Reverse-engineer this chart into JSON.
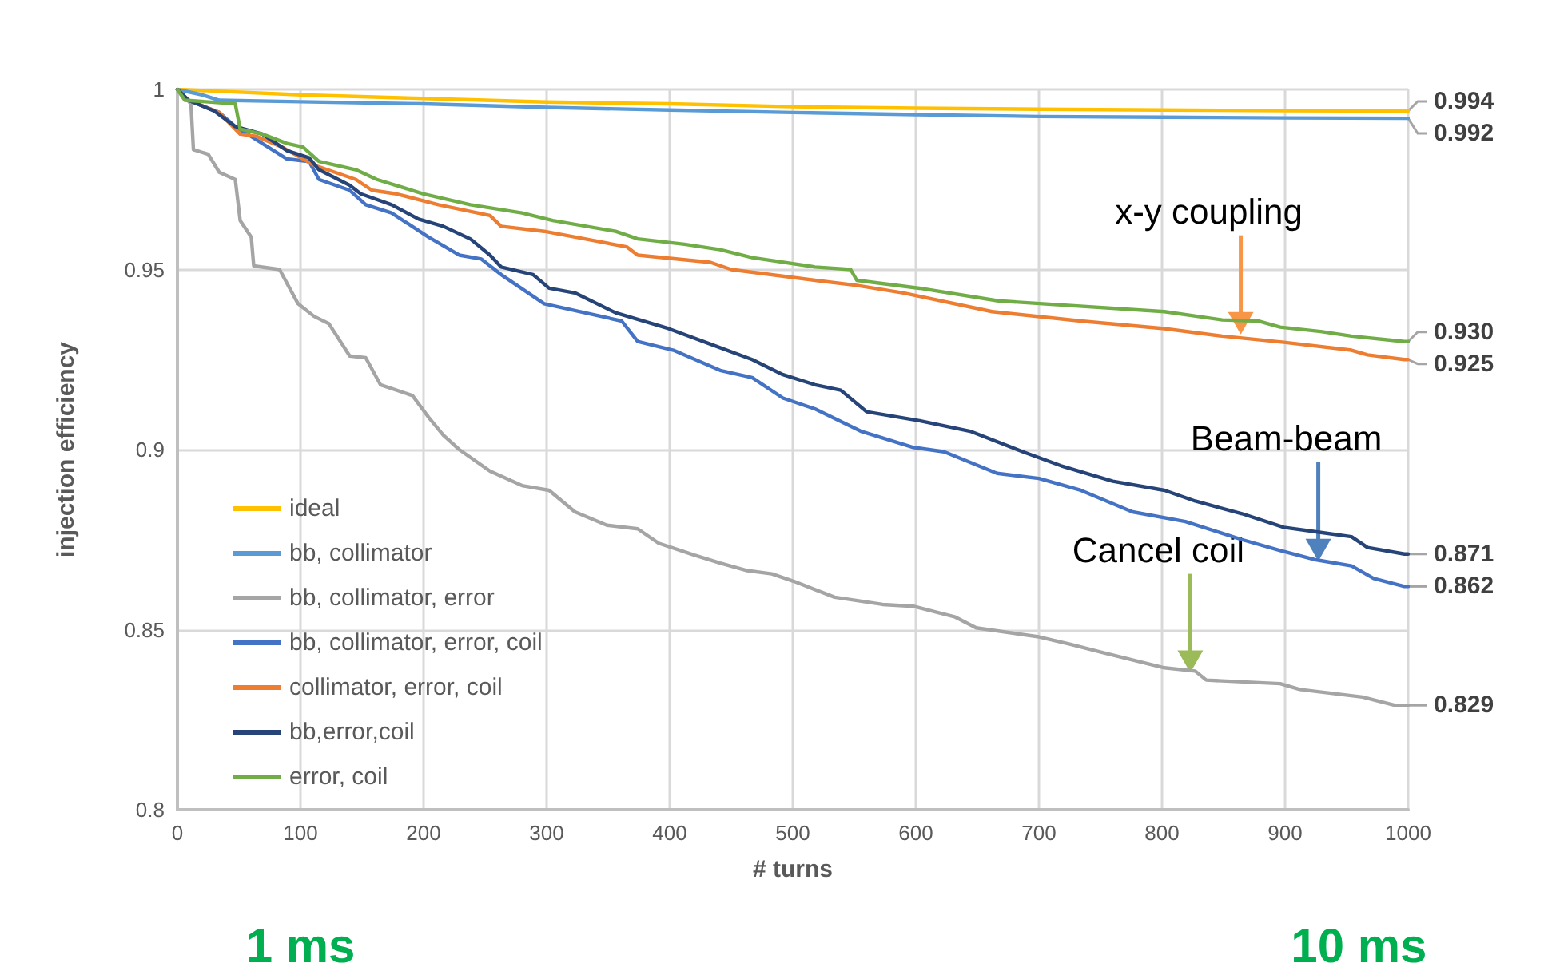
{
  "chart_data": {
    "type": "line",
    "xlabel": "# turns",
    "ylabel": "injection efficiency",
    "xlim": [
      0,
      1000
    ],
    "xticks": [
      0,
      100,
      200,
      300,
      400,
      500,
      600,
      700,
      800,
      900,
      1000
    ],
    "ylim": [
      0.8,
      1
    ],
    "yticks": [
      0.8,
      0.85,
      0.9,
      0.95,
      1
    ],
    "grid": true,
    "legend": "bottom left",
    "marker": "none",
    "line_style": "solid",
    "series": [
      {
        "name": "ideal",
        "color": "#ffc000",
        "x": [
          0,
          100,
          200,
          300,
          400,
          500,
          600,
          700,
          800,
          900,
          1000
        ],
        "values": [
          1,
          0.9985,
          0.9975,
          0.9965,
          0.996,
          0.9952,
          0.9948,
          0.9945,
          0.9943,
          0.9941,
          0.994
        ]
      },
      {
        "name": "bb, collimator",
        "color": "#5b9bd5",
        "x": [
          0,
          20,
          34,
          100,
          200,
          300,
          400,
          500,
          600,
          700,
          800,
          900,
          1000
        ],
        "values": [
          1,
          0.9985,
          0.997,
          0.9966,
          0.996,
          0.995,
          0.9943,
          0.9936,
          0.993,
          0.9925,
          0.9923,
          0.9921,
          0.992
        ]
      },
      {
        "name": "bb, collimator, error",
        "color": "#a5a5a5",
        "x": [
          0,
          11,
          13,
          25,
          34,
          47,
          51,
          60,
          62,
          83,
          98,
          111,
          123,
          140,
          153,
          165,
          191,
          204,
          216,
          229,
          254,
          280,
          302,
          323,
          349,
          374,
          391,
          420,
          441,
          463,
          483,
          501,
          534,
          573,
          598,
          632,
          649,
          700,
          725,
          751,
          802,
          827,
          836,
          896,
          912,
          963,
          989,
          1000
        ],
        "values": [
          1,
          0.996,
          0.9833,
          0.982,
          0.977,
          0.975,
          0.9636,
          0.959,
          0.951,
          0.95,
          0.9405,
          0.937,
          0.935,
          0.926,
          0.9255,
          0.918,
          0.915,
          0.909,
          0.904,
          0.9,
          0.894,
          0.89,
          0.8887,
          0.8827,
          0.879,
          0.878,
          0.874,
          0.8707,
          0.8685,
          0.8664,
          0.8655,
          0.8634,
          0.859,
          0.857,
          0.8565,
          0.8535,
          0.8505,
          0.848,
          0.846,
          0.8437,
          0.8394,
          0.8385,
          0.836,
          0.835,
          0.8334,
          0.8313,
          0.829,
          0.829
        ]
      },
      {
        "name": "bb, collimator, error, coil",
        "color": "#4472c4",
        "x": [
          0,
          9,
          34,
          47,
          69,
          89,
          107,
          115,
          140,
          153,
          174,
          204,
          229,
          247,
          263,
          298,
          331,
          361,
          374,
          403,
          441,
          467,
          492,
          518,
          556,
          598,
          623,
          666,
          700,
          734,
          776,
          819,
          865,
          896,
          925,
          954,
          972,
          997,
          1000
        ],
        "values": [
          1,
          0.997,
          0.9936,
          0.9897,
          0.985,
          0.9807,
          0.98,
          0.975,
          0.972,
          0.968,
          0.9657,
          0.959,
          0.954,
          0.9529,
          0.9486,
          0.9405,
          0.938,
          0.9357,
          0.93,
          0.9276,
          0.922,
          0.92,
          0.9143,
          0.9113,
          0.905,
          0.9006,
          0.8994,
          0.8934,
          0.892,
          0.8887,
          0.8827,
          0.88,
          0.875,
          0.872,
          0.8694,
          0.8677,
          0.8642,
          0.862,
          0.862
        ]
      },
      {
        "name": "collimator, error, coil",
        "color": "#ed7d31",
        "x": [
          0,
          9,
          34,
          47,
          51,
          64,
          85,
          111,
          145,
          158,
          178,
          212,
          254,
          263,
          298,
          331,
          365,
          374,
          433,
          450,
          518,
          552,
          590,
          662,
          734,
          802,
          849,
          899,
          954,
          967,
          997,
          1000
        ],
        "values": [
          1,
          0.997,
          0.9936,
          0.989,
          0.9876,
          0.987,
          0.984,
          0.979,
          0.975,
          0.972,
          0.971,
          0.968,
          0.965,
          0.962,
          0.9606,
          0.9585,
          0.9563,
          0.954,
          0.952,
          0.95,
          0.947,
          0.9456,
          0.9435,
          0.9383,
          0.9357,
          0.9336,
          0.9315,
          0.9298,
          0.9276,
          0.9263,
          0.925,
          0.925
        ]
      },
      {
        "name": "bb,error,coil",
        "color": "#264478",
        "x": [
          0,
          9,
          30,
          47,
          69,
          89,
          107,
          115,
          140,
          149,
          174,
          196,
          216,
          238,
          254,
          263,
          289,
          302,
          323,
          356,
          399,
          433,
          467,
          492,
          518,
          539,
          560,
          603,
          645,
          687,
          718,
          760,
          802,
          827,
          865,
          899,
          929,
          954,
          967,
          997,
          1000
        ],
        "values": [
          1,
          0.997,
          0.994,
          0.9897,
          0.9876,
          0.983,
          0.981,
          0.9777,
          0.9734,
          0.971,
          0.968,
          0.964,
          0.962,
          0.9585,
          0.954,
          0.9507,
          0.9486,
          0.9448,
          0.9435,
          0.938,
          0.9336,
          0.9293,
          0.925,
          0.9208,
          0.918,
          0.9165,
          0.9105,
          0.908,
          0.905,
          0.8994,
          0.8955,
          0.8912,
          0.8887,
          0.8857,
          0.8822,
          0.8784,
          0.877,
          0.8758,
          0.8728,
          0.871,
          0.871
        ]
      },
      {
        "name": "error, coil",
        "color": "#70ad47",
        "x": [
          0,
          6,
          47,
          51,
          69,
          89,
          102,
          115,
          145,
          162,
          200,
          238,
          280,
          305,
          356,
          374,
          412,
          441,
          467,
          518,
          547,
          552,
          603,
          667,
          802,
          849,
          878,
          896,
          929,
          954,
          997,
          1000
        ],
        "values": [
          1,
          0.997,
          0.996,
          0.989,
          0.9876,
          0.985,
          0.984,
          0.98,
          0.9777,
          0.975,
          0.971,
          0.968,
          0.9657,
          0.9636,
          0.9606,
          0.9585,
          0.957,
          0.9555,
          0.9533,
          0.9507,
          0.95,
          0.947,
          0.9448,
          0.9413,
          0.9383,
          0.936,
          0.9357,
          0.934,
          0.9328,
          0.9315,
          0.93,
          0.93
        ]
      }
    ],
    "annotations": [
      {
        "text": "0.994",
        "x": 1000,
        "y": 0.994
      },
      {
        "text": "0.992",
        "x": 1000,
        "y": 0.992
      },
      {
        "text": "0.930",
        "x": 1000,
        "y": 0.93
      },
      {
        "text": "0.925",
        "x": 1000,
        "y": 0.925
      },
      {
        "text": "0.871",
        "x": 1000,
        "y": 0.871
      },
      {
        "text": "0.862",
        "x": 1000,
        "y": 0.862
      },
      {
        "text": "0.829",
        "x": 1000,
        "y": 0.829
      },
      {
        "text": "x-y coupling",
        "x": 864,
        "y": 0.932
      },
      {
        "text": "Beam-beam",
        "x": 927,
        "y": 0.869
      },
      {
        "text": "Cancel coil",
        "x": 823,
        "y": 0.838
      },
      "1 ms",
      "10 ms"
    ]
  }
}
